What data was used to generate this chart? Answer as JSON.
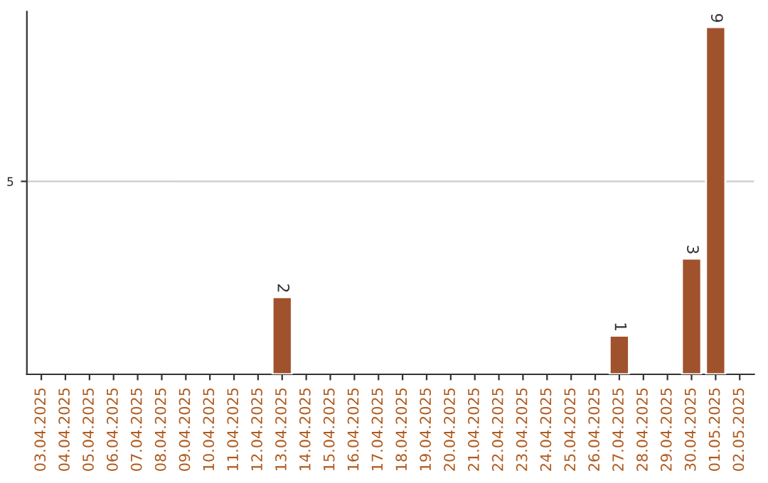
{
  "chart_data": {
    "type": "bar",
    "categories": [
      "03.04.2025",
      "04.04.2025",
      "05.04.2025",
      "06.04.2025",
      "07.04.2025",
      "08.04.2025",
      "09.04.2025",
      "10.04.2025",
      "11.04.2025",
      "12.04.2025",
      "13.04.2025",
      "14.04.2025",
      "15.04.2025",
      "16.04.2025",
      "17.04.2025",
      "18.04.2025",
      "19.04.2025",
      "20.04.2025",
      "21.04.2025",
      "22.04.2025",
      "23.04.2025",
      "24.04.2025",
      "25.04.2025",
      "26.04.2025",
      "27.04.2025",
      "28.04.2025",
      "29.04.2025",
      "30.04.2025",
      "01.05.2025",
      "02.05.2025"
    ],
    "values": [
      null,
      null,
      null,
      null,
      null,
      null,
      null,
      null,
      null,
      null,
      2,
      null,
      null,
      null,
      null,
      null,
      null,
      null,
      null,
      null,
      null,
      null,
      null,
      null,
      1,
      null,
      null,
      3,
      9,
      null
    ],
    "value_labels": [
      null,
      null,
      null,
      null,
      null,
      null,
      null,
      null,
      null,
      null,
      "2",
      null,
      null,
      null,
      null,
      null,
      null,
      null,
      null,
      null,
      null,
      null,
      null,
      null,
      "1",
      null,
      null,
      "3",
      "9",
      null
    ],
    "color": "#a0522d",
    "ylim": [
      0,
      9.4
    ],
    "yticks": [
      5
    ],
    "grid": "y"
  }
}
